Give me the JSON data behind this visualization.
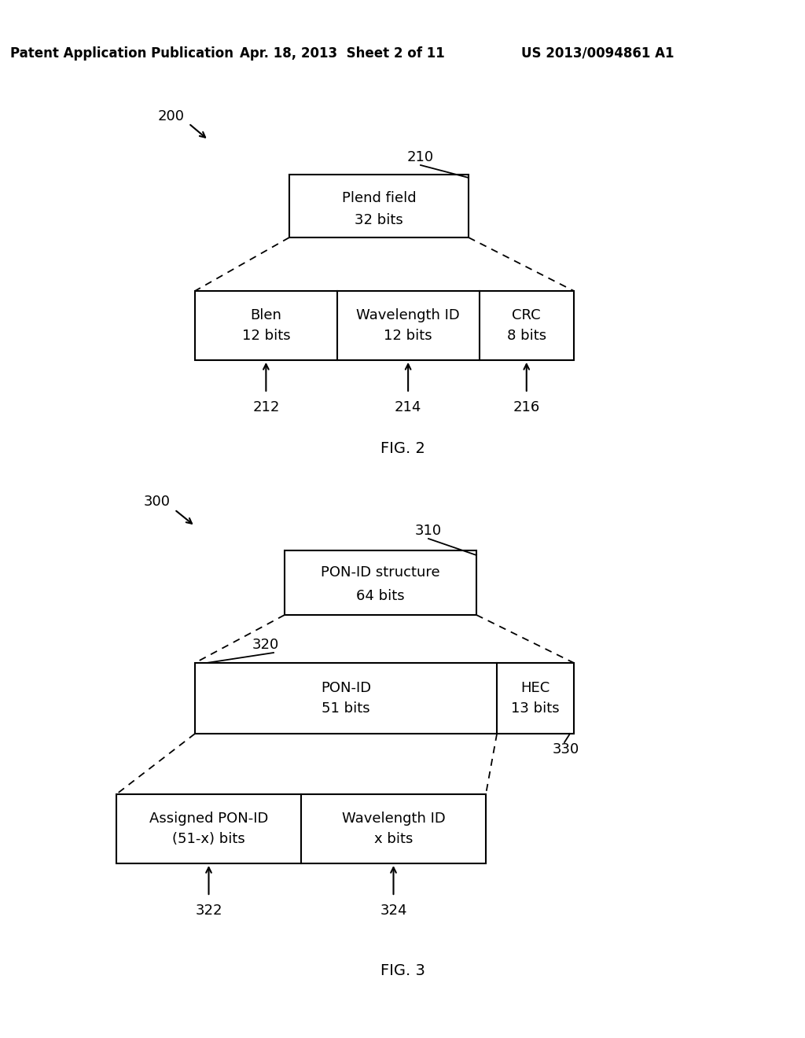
{
  "bg_color": "#ffffff",
  "text_color": "#000000",
  "header_line1": "Patent Application Publication",
  "header_date": "Apr. 18, 2013  Sheet 2 of 11",
  "header_patent": "US 2013/0094861 A1",
  "fig2_caption": "FIG. 2",
  "fig3_caption": "FIG. 3",
  "box210_line1": "Plend field",
  "box210_line2": "32 bits",
  "box212_line1": "Blen",
  "box212_line2": "12 bits",
  "box214_line1": "Wavelength ID",
  "box214_line2": "12 bits",
  "box216_line1": "CRC",
  "box216_line2": "8 bits",
  "box310_line1": "PON-ID structure",
  "box310_line2": "64 bits",
  "box320_line1": "PON-ID",
  "box320_line2": "51 bits",
  "box330_line1": "HEC",
  "box330_line2": "13 bits",
  "box322_line1": "Assigned PON-ID",
  "box322_line2": "(51-x) bits",
  "box324_line1": "Wavelength ID",
  "box324_line2": "x bits"
}
